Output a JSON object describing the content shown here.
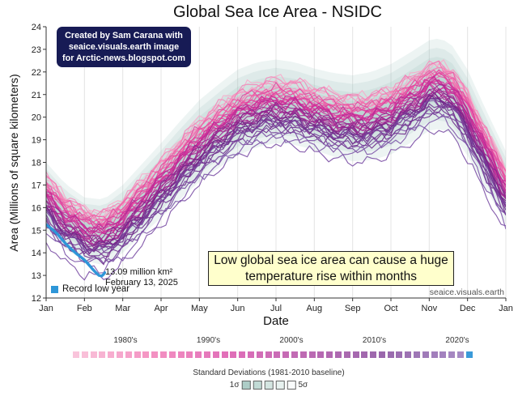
{
  "title": "Global Sea Ice Area - NSIDC",
  "axis": {
    "xlabel": "Date",
    "ylabel": "Area (Millions of square kilometers)"
  },
  "credit_box": {
    "line1": "Created by Sam Carana with",
    "line2": "seaice.visuals.earth image",
    "line3": "for Arctic-news.blogspot.com",
    "bg": "#171b55",
    "text_color": "#ffffff"
  },
  "callout": {
    "text": "Low global sea ice area can cause a huge temperature rise within months",
    "bg": "#ffffcc"
  },
  "annotation": {
    "value": "13.09 million km²",
    "date": "February 13, 2025"
  },
  "record_low_legend": {
    "label": "Record low year",
    "color": "#2e96d8"
  },
  "watermark": "seaice.visuals.earth",
  "decade_legend": {
    "labels": [
      "1980's",
      "1990's",
      "2000's",
      "2010's",
      "2020's"
    ]
  },
  "stddev_legend": {
    "title": "Standard Deviations (1981-2010 baseline)",
    "low_label": "1σ",
    "high_label": "5σ",
    "swatches": [
      "#adcdc7",
      "#c1dad5",
      "#d4e5e1",
      "#e7f1ef",
      "#f9fbfb"
    ]
  },
  "chart_data": {
    "type": "line",
    "title": "Global Sea Ice Area - NSIDC",
    "xlabel": "Date",
    "ylabel": "Area (Millions of square kilometers)",
    "ylim": [
      12,
      24
    ],
    "y_ticks": [
      12,
      13,
      14,
      15,
      16,
      17,
      18,
      19,
      20,
      21,
      22,
      23,
      24
    ],
    "x_ticks": [
      "Jan",
      "Feb",
      "Mar",
      "Apr",
      "May",
      "Jun",
      "Jul",
      "Aug",
      "Sep",
      "Oct",
      "Nov",
      "Dec",
      "Jan"
    ],
    "grid": "vertical-month-gridlines",
    "legend_position": "below",
    "band_color": "#8fbcb4",
    "band_levels": 5,
    "climatology_monthly": [
      [
        0,
        16.5
      ],
      [
        0.5,
        15.6
      ],
      [
        1,
        15.05
      ],
      [
        1.5,
        14.9
      ],
      [
        2,
        15.5
      ],
      [
        2.5,
        16.35
      ],
      [
        3,
        17.2
      ],
      [
        3.5,
        18.1
      ],
      [
        4,
        18.95
      ],
      [
        4.5,
        19.6
      ],
      [
        5,
        20.2
      ],
      [
        5.5,
        20.55
      ],
      [
        6,
        20.7
      ],
      [
        6.5,
        20.6
      ],
      [
        7,
        20.35
      ],
      [
        7.5,
        20.1
      ],
      [
        8,
        19.95
      ],
      [
        8.5,
        20.05
      ],
      [
        9,
        20.35
      ],
      [
        9.5,
        20.85
      ],
      [
        10,
        21.4
      ],
      [
        10.3,
        21.5
      ],
      [
        10.6,
        21.2
      ],
      [
        11,
        20.2
      ],
      [
        11.5,
        18.5
      ],
      [
        12,
        16.9
      ]
    ],
    "sigma_monthly": [
      [
        0,
        0.3
      ],
      [
        1,
        0.28
      ],
      [
        2,
        0.3
      ],
      [
        3,
        0.33
      ],
      [
        4,
        0.36
      ],
      [
        5,
        0.38
      ],
      [
        6,
        0.37
      ],
      [
        7,
        0.36
      ],
      [
        8,
        0.38
      ],
      [
        9,
        0.4
      ],
      [
        10.3,
        0.4
      ],
      [
        11,
        0.38
      ],
      [
        12,
        0.32
      ]
    ],
    "year_series": {
      "start_year": 1980,
      "end_year": 2024,
      "anomaly_start": 0.9,
      "anomaly_end": -1.25,
      "anomaly_jitter": 0.5,
      "noise_amplitude": 0.3,
      "special_anomalies": {
        "2016": -1.15,
        "2023": -1.95,
        "2024": -1.6
      },
      "color_stops": [
        "#f7abcb",
        "#ef63a8",
        "#d3309a",
        "#a02a93",
        "#6d2688",
        "#8059ab"
      ]
    },
    "record_low_series": {
      "year": 2025,
      "color": "#2e96d8",
      "points": [
        [
          0,
          15.25
        ],
        [
          0.1,
          15.12
        ],
        [
          0.2,
          14.98
        ],
        [
          0.3,
          14.82
        ],
        [
          0.4,
          14.62
        ],
        [
          0.5,
          14.42
        ],
        [
          0.6,
          14.25
        ],
        [
          0.7,
          14.1
        ],
        [
          0.8,
          13.95
        ],
        [
          0.9,
          13.82
        ],
        [
          1.0,
          13.68
        ],
        [
          1.1,
          13.5
        ],
        [
          1.2,
          13.3
        ],
        [
          1.3,
          13.12
        ],
        [
          1.38,
          13.0
        ],
        [
          1.45,
          12.97
        ],
        [
          1.5,
          13.05
        ],
        [
          1.53,
          13.12
        ]
      ]
    },
    "annotated_point": {
      "month": 1.43,
      "value": 13.09,
      "label": "13.09 million km² February 13, 2025"
    },
    "decade_swatch_years": {
      "start": 1980,
      "end": 2025,
      "record_year_color": "#3a9ad9"
    }
  }
}
